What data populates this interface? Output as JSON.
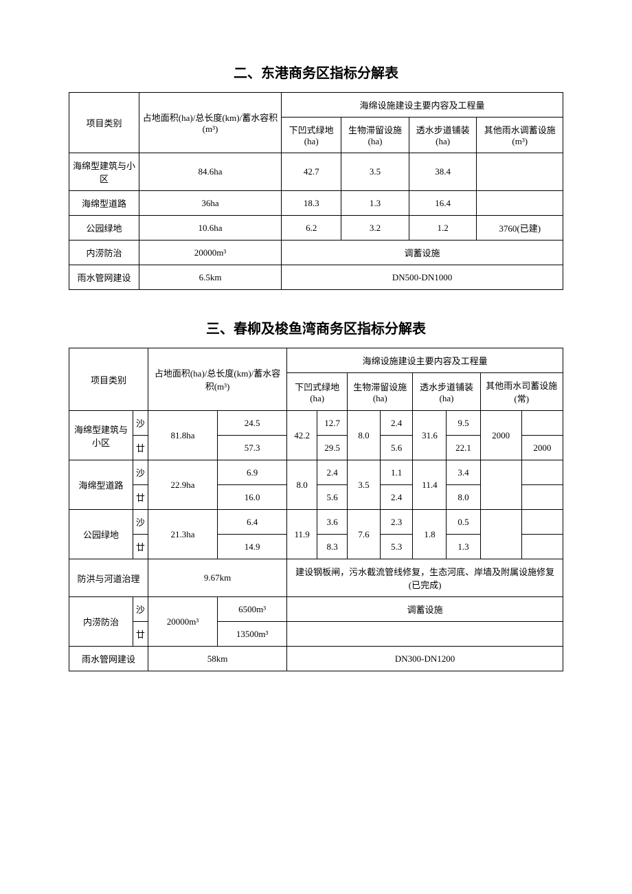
{
  "table1": {
    "title": "二、东港商务区指标分解表",
    "headers": {
      "col1": "项目类别",
      "col2": "占地面积(ha)/总长度(km)/蓄水容积(m³)",
      "col3_span": "海绵设施建设主要内容及工程量",
      "sub1": "下凹式绿地(ha)",
      "sub2": "生物滞留设施(ha)",
      "sub3": "透水步道铺装(ha)",
      "sub4": "其他雨水调蓄设施(m³)"
    },
    "rows": [
      {
        "c1": "海绵型建筑与小区",
        "c2": "84.6ha",
        "c3": "42.7",
        "c4": "3.5",
        "c5": "38.4",
        "c6": ""
      },
      {
        "c1": "海绵型道路",
        "c2": "36ha",
        "c3": "18.3",
        "c4": "1.3",
        "c5": "16.4",
        "c6": ""
      },
      {
        "c1": "公园绿地",
        "c2": "10.6ha",
        "c3": "6.2",
        "c4": "3.2",
        "c5": "1.2",
        "c6": "3760(已建)"
      },
      {
        "c1": "内涝防治",
        "c2": "20000m³",
        "merged": "调蓄设施"
      },
      {
        "c1": "雨水管网建设",
        "c2": "6.5km",
        "merged": "DN500-DN1000"
      }
    ]
  },
  "table2": {
    "title": "三、春柳及梭鱼湾商务区指标分解表",
    "headers": {
      "col1": "项目类别",
      "col2": "占地面积(ha)/总长度(km)/蓄水容积(m³)",
      "col3_span": "海绵设施建设主要内容及工程量",
      "sub1": "下凹式绿地(ha)",
      "sub2": "生物滞留设施(ha)",
      "sub3": "透水步道铺装(ha)",
      "sub4": "其他雨水司蓄设施(常)"
    },
    "rows": {
      "r1": {
        "name": "海绵型建筑与小区",
        "sub1": "沙",
        "sub2": "廿",
        "area_total": "81.8ha",
        "area_a": "24.5",
        "area_b": "57.3",
        "v1_total": "42.2",
        "v1_a": "12.7",
        "v1_b": "29.5",
        "v2_total": "8.0",
        "v2_a": "2.4",
        "v2_b": "5.6",
        "v3_total": "31.6",
        "v3_a": "9.5",
        "v3_b": "22.1",
        "v4_total": "2000",
        "v4_a": "",
        "v4_b": "2000"
      },
      "r2": {
        "name": "海绵型道路",
        "sub1": "沙",
        "sub2": "廿",
        "area_total": "22.9ha",
        "area_a": "6.9",
        "area_b": "16.0",
        "v1_total": "8.0",
        "v1_a": "2.4",
        "v1_b": "5.6",
        "v2_total": "3.5",
        "v2_a": "1.1",
        "v2_b": "2.4",
        "v3_total": "11.4",
        "v3_a": "3.4",
        "v3_b": "8.0",
        "v4_total": "",
        "v4_a": "",
        "v4_b": ""
      },
      "r3": {
        "name": "公园绿地",
        "sub1": "沙",
        "sub2": "廿",
        "area_total": "21.3ha",
        "area_a": "6.4",
        "area_b": "14.9",
        "v1_total": "11.9",
        "v1_a": "3.6",
        "v1_b": "8.3",
        "v2_total": "7.6",
        "v2_a": "2.3",
        "v2_b": "5.3",
        "v3_total": "1.8",
        "v3_a": "0.5",
        "v3_b": "1.3",
        "v4_total": "",
        "v4_a": "",
        "v4_b": ""
      },
      "r4": {
        "name": "防洪与河道治理",
        "area": "9.67km",
        "merged": "建设钢板闸，污水截流管线修复，生态河底、岸墙及附属设施修复(已完成)"
      },
      "r5": {
        "name": "内涝防治",
        "sub1": "沙",
        "sub2": "廿",
        "area_total": "20000m³",
        "area_a": "6500m³",
        "area_b": "13500m³",
        "merged": "调蓄设施"
      },
      "r6": {
        "name": "雨水管网建设",
        "area": "58km",
        "merged": "DN300-DN1200"
      }
    }
  }
}
